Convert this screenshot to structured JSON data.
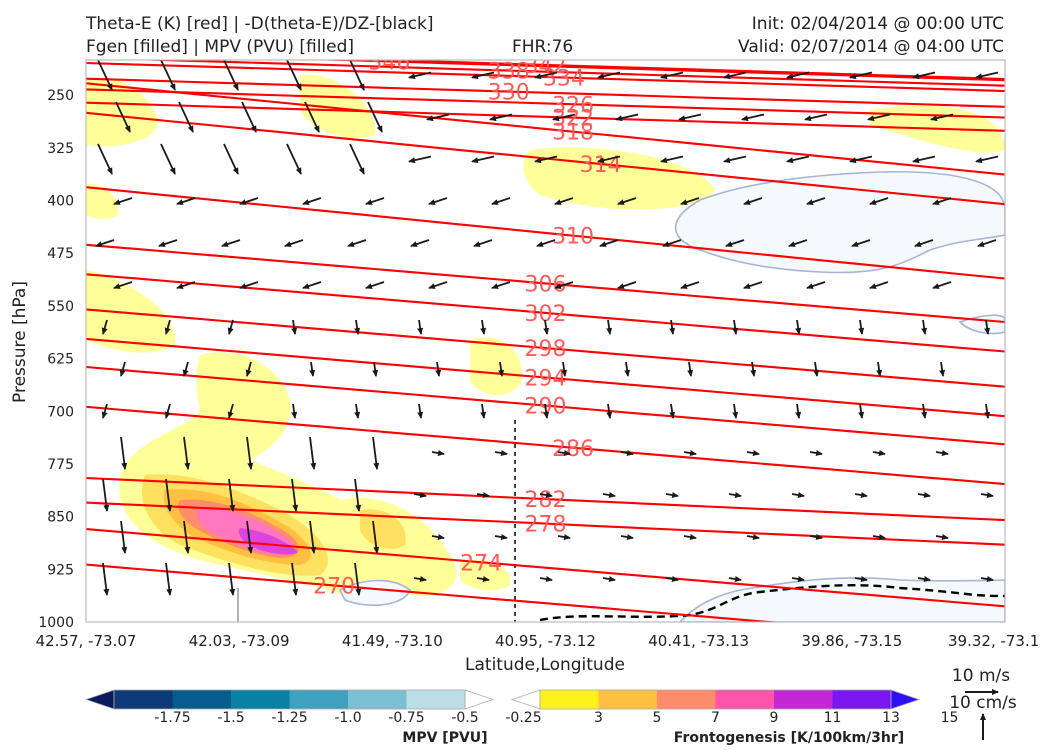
{
  "header": {
    "title_left_1": "Theta-E (K) [red] | -D(theta-E)/DZ-[black]",
    "title_left_2": "Fgen [filled] | MPV (PVU) [filled]",
    "title_center": "FHR:76",
    "title_right_1": "Init: 02/04/2014 @ 00:00 UTC",
    "title_right_2": "Valid: 02/07/2014 @ 04:00 UTC"
  },
  "chart_data": {
    "type": "cross-section",
    "xlabel": "Latitude,Longitude",
    "ylabel": "Pressure [hPa]",
    "x_ticks": [
      "42.57, -73.07",
      "42.03, -73.09",
      "41.49, -73.10",
      "40.95, -73.12",
      "40.41, -73.13",
      "39.86, -73.15",
      "39.32, -73.1"
    ],
    "ylim": [
      1000,
      200
    ],
    "y_ticks": [
      250,
      325,
      400,
      475,
      550,
      625,
      700,
      775,
      850,
      925,
      1000
    ],
    "grid": false,
    "isentropes": {
      "color": "#ff0000",
      "label_color": "#ff5a5a",
      "labels": [
        {
          "value": "346",
          "x_frac": 0.33,
          "p": 202
        },
        {
          "value": "342",
          "x_frac": 0.5,
          "p": 207
        },
        {
          "value": "338",
          "x_frac": 0.46,
          "p": 215
        },
        {
          "value": "334",
          "x_frac": 0.52,
          "p": 225
        },
        {
          "value": "330",
          "x_frac": 0.46,
          "p": 245
        },
        {
          "value": "326",
          "x_frac": 0.53,
          "p": 263
        },
        {
          "value": "322",
          "x_frac": 0.53,
          "p": 282
        },
        {
          "value": "318",
          "x_frac": 0.53,
          "p": 302
        },
        {
          "value": "314",
          "x_frac": 0.56,
          "p": 348
        },
        {
          "value": "310",
          "x_frac": 0.53,
          "p": 450
        },
        {
          "value": "306",
          "x_frac": 0.5,
          "p": 518
        },
        {
          "value": "302",
          "x_frac": 0.5,
          "p": 560
        },
        {
          "value": "298",
          "x_frac": 0.5,
          "p": 610
        },
        {
          "value": "294",
          "x_frac": 0.5,
          "p": 652
        },
        {
          "value": "290",
          "x_frac": 0.5,
          "p": 692
        },
        {
          "value": "286",
          "x_frac": 0.53,
          "p": 752
        },
        {
          "value": "282",
          "x_frac": 0.5,
          "p": 825
        },
        {
          "value": "278",
          "x_frac": 0.5,
          "p": 860
        },
        {
          "value": "274",
          "x_frac": 0.43,
          "p": 915
        },
        {
          "value": "270",
          "x_frac": 0.27,
          "p": 948
        }
      ]
    },
    "wind_reference": {
      "u_label": "10 m/s",
      "w_label": "10 cm/s"
    },
    "colorbars": [
      {
        "label": "MPV [PVU]",
        "ticks": [
          "-1.75",
          "-1.5",
          "-1.25",
          "-1.0",
          "-0.75",
          "-0.5",
          "-0.25"
        ],
        "colors": [
          "#0a1a5c",
          "#0d3a78",
          "#075c8f",
          "#0b80a6",
          "#3fa0c0",
          "#7cbfd3",
          "#bbdee6",
          "#ffffff"
        ]
      },
      {
        "label": "Frontogenesis [K/100km/3hr]",
        "ticks": [
          "3",
          "5",
          "7",
          "9",
          "11",
          "13",
          "15"
        ],
        "colors": [
          "#ffffff",
          "#fff21a",
          "#ffbf40",
          "#ff8c6a",
          "#ff55a8",
          "#c428d6",
          "#7a16f0",
          "#2a12f5"
        ]
      }
    ]
  }
}
